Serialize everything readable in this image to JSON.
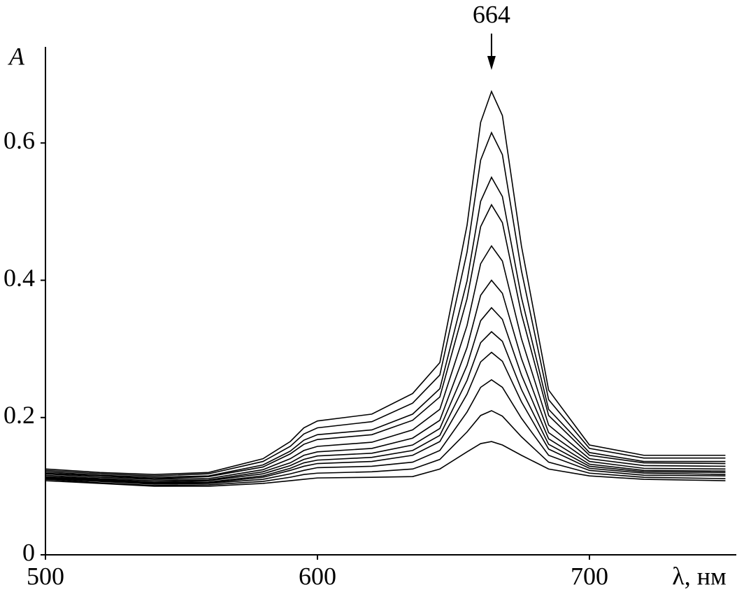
{
  "chart_data": {
    "type": "line",
    "y_label": "A",
    "x_label": "λ, нм",
    "annotations": [
      {
        "text": "664",
        "x": 664
      }
    ],
    "x": [
      500,
      520,
      540,
      560,
      580,
      590,
      595,
      600,
      620,
      635,
      645,
      655,
      660,
      664,
      668,
      675,
      685,
      700,
      720,
      750
    ],
    "xlim": [
      500,
      754
    ],
    "ylim": [
      0,
      0.74
    ],
    "xticks": [
      500,
      600,
      700
    ],
    "yticks": [
      0,
      0.2,
      0.4,
      0.6
    ],
    "grid": false,
    "series": [
      {
        "color": "#000000",
        "values": [
          0.125,
          0.12,
          0.117,
          0.12,
          0.14,
          0.165,
          0.185,
          0.195,
          0.205,
          0.235,
          0.28,
          0.48,
          0.63,
          0.675,
          0.64,
          0.45,
          0.24,
          0.16,
          0.145,
          0.145
        ]
      },
      {
        "color": "#000000",
        "values": [
          0.123,
          0.118,
          0.115,
          0.118,
          0.136,
          0.158,
          0.176,
          0.185,
          0.194,
          0.221,
          0.262,
          0.441,
          0.575,
          0.615,
          0.583,
          0.414,
          0.226,
          0.155,
          0.141,
          0.141
        ]
      },
      {
        "color": "#000000",
        "values": [
          0.121,
          0.116,
          0.113,
          0.115,
          0.131,
          0.151,
          0.167,
          0.175,
          0.182,
          0.205,
          0.242,
          0.399,
          0.515,
          0.55,
          0.522,
          0.375,
          0.212,
          0.149,
          0.136,
          0.136
        ]
      },
      {
        "color": "#000000",
        "values": [
          0.119,
          0.115,
          0.111,
          0.114,
          0.128,
          0.147,
          0.161,
          0.168,
          0.175,
          0.196,
          0.23,
          0.373,
          0.478,
          0.51,
          0.484,
          0.351,
          0.203,
          0.145,
          0.134,
          0.133
        ]
      },
      {
        "color": "#000000",
        "values": [
          0.118,
          0.113,
          0.11,
          0.111,
          0.124,
          0.14,
          0.152,
          0.158,
          0.164,
          0.182,
          0.212,
          0.334,
          0.424,
          0.45,
          0.428,
          0.315,
          0.189,
          0.14,
          0.13,
          0.129
        ]
      },
      {
        "color": "#000000",
        "values": [
          0.116,
          0.111,
          0.108,
          0.109,
          0.121,
          0.134,
          0.145,
          0.15,
          0.155,
          0.17,
          0.196,
          0.302,
          0.378,
          0.4,
          0.381,
          0.286,
          0.178,
          0.136,
          0.126,
          0.125
        ]
      },
      {
        "color": "#000000",
        "values": [
          0.114,
          0.11,
          0.106,
          0.108,
          0.118,
          0.13,
          0.139,
          0.144,
          0.148,
          0.16,
          0.184,
          0.276,
          0.341,
          0.36,
          0.343,
          0.262,
          0.169,
          0.132,
          0.123,
          0.122
        ]
      },
      {
        "color": "#000000",
        "values": [
          0.113,
          0.109,
          0.105,
          0.106,
          0.115,
          0.126,
          0.134,
          0.138,
          0.142,
          0.152,
          0.174,
          0.254,
          0.309,
          0.325,
          0.311,
          0.241,
          0.161,
          0.129,
          0.121,
          0.12
        ]
      },
      {
        "color": "#000000",
        "values": [
          0.112,
          0.108,
          0.104,
          0.105,
          0.113,
          0.123,
          0.129,
          0.133,
          0.136,
          0.145,
          0.165,
          0.234,
          0.281,
          0.295,
          0.282,
          0.223,
          0.154,
          0.126,
          0.119,
          0.117
        ]
      },
      {
        "color": "#000000",
        "values": [
          0.111,
          0.107,
          0.103,
          0.104,
          0.11,
          0.118,
          0.123,
          0.127,
          0.129,
          0.135,
          0.152,
          0.208,
          0.244,
          0.255,
          0.244,
          0.199,
          0.145,
          0.123,
          0.116,
          0.115
        ]
      },
      {
        "color": "#000000",
        "values": [
          0.11,
          0.105,
          0.101,
          0.102,
          0.107,
          0.113,
          0.117,
          0.119,
          0.121,
          0.125,
          0.139,
          0.179,
          0.203,
          0.21,
          0.202,
          0.172,
          0.135,
          0.119,
          0.113,
          0.111
        ]
      },
      {
        "color": "#000000",
        "values": [
          0.108,
          0.104,
          0.1,
          0.1,
          0.104,
          0.108,
          0.11,
          0.112,
          0.113,
          0.114,
          0.125,
          0.15,
          0.162,
          0.165,
          0.16,
          0.145,
          0.125,
          0.115,
          0.11,
          0.108
        ]
      }
    ]
  }
}
